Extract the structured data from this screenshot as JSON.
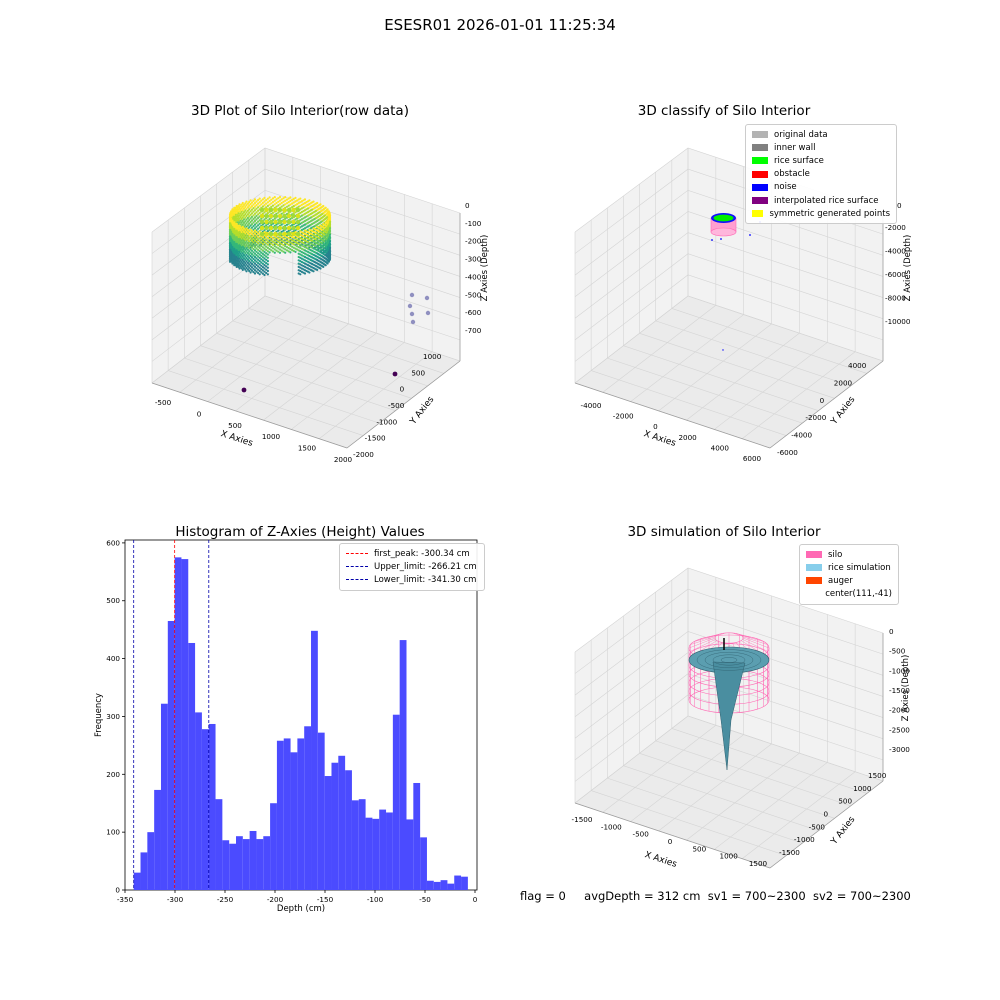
{
  "suptitle": "ESESR01 2026-01-01 11:25:34",
  "status": {
    "flag": "flag = 0",
    "avg_depth": "avgDepth = 312 cm",
    "sv1": "sv1 = 700~2300",
    "sv2": "sv2 = 700~2300"
  },
  "colors": {
    "viridis_low": "#440154",
    "viridis_mid": "#21908d",
    "viridis_high": "#fde725",
    "hist_bar": "#4b4bff",
    "grey_pane": "#f2f2f2"
  },
  "chart_data": [
    {
      "type": "scatter",
      "projection": "3d",
      "title": "3D Plot of Silo Interior(row data)",
      "xlabel": "X Axies",
      "ylabel": "Y Axies",
      "zlabel": "Z Axies (Depth)",
      "x_ticks": [
        "-500",
        "0",
        "500",
        "1000",
        "1500",
        "2000"
      ],
      "y_ticks": [
        "-2000",
        "-1500",
        "-1000",
        "-500",
        "0",
        "500",
        "1000"
      ],
      "z_ticks": [
        "0",
        "-100",
        "-200",
        "-300",
        "-400",
        "-500",
        "-600",
        "-700"
      ],
      "xlim": [
        -600,
        2000
      ],
      "ylim": [
        -2100,
        1200
      ],
      "zlim": [
        -760,
        20
      ],
      "colormap": "viridis",
      "grid": true
    },
    {
      "type": "scatter",
      "projection": "3d",
      "title": "3D classify of Silo Interior",
      "xlabel": "X Axies",
      "ylabel": "Y Axies",
      "zlabel": "Z Axies (Depth)",
      "x_ticks": [
        "-4000",
        "-2000",
        "0",
        "2000",
        "4000",
        "6000"
      ],
      "y_ticks": [
        "-6000",
        "-4000",
        "-2000",
        "0",
        "2000",
        "4000"
      ],
      "z_ticks": [
        "-2000",
        "-4000",
        "-6000",
        "-8000",
        "-10000"
      ],
      "z_tick_partial": "0",
      "xlim": [
        -5000,
        6500
      ],
      "ylim": [
        -6500,
        4500
      ],
      "zlim": [
        -11000,
        0
      ],
      "grid": true,
      "legend": {
        "position": "top-right",
        "entries": [
          {
            "label": "original data",
            "color": "#b3b3b3"
          },
          {
            "label": "inner wall",
            "color": "#808080"
          },
          {
            "label": "rice surface",
            "color": "#00ff00"
          },
          {
            "label": "obstacle",
            "color": "#ff0000"
          },
          {
            "label": "noise",
            "color": "#0000ff"
          },
          {
            "label": "interpolated rice surface",
            "color": "#800080"
          },
          {
            "label": "symmetric generated points",
            "color": "#ffff00"
          }
        ]
      }
    },
    {
      "type": "bar",
      "title": "Histogram of Z-Axies (Height) Values",
      "xlabel": "Depth (cm)",
      "ylabel": "Frequency",
      "xlim": [
        -350,
        2
      ],
      "ylim": [
        0,
        605
      ],
      "x_ticks": [
        -350,
        -300,
        -250,
        -200,
        -150,
        -100,
        -50,
        0
      ],
      "y_ticks": [
        0,
        100,
        200,
        300,
        400,
        500,
        600
      ],
      "bin_width": 6.82,
      "bin_start": -341.3,
      "values": [
        30,
        65,
        100,
        173,
        322,
        465,
        575,
        572,
        427,
        307,
        278,
        287,
        157,
        86,
        80,
        93,
        88,
        102,
        88,
        93,
        150,
        258,
        262,
        238,
        262,
        283,
        448,
        272,
        197,
        220,
        232,
        207,
        155,
        157,
        125,
        123,
        139,
        134,
        303,
        432,
        122,
        185,
        91,
        16,
        14,
        17,
        11,
        25,
        23
      ],
      "vlines": [
        {
          "label": "first_peak: -300.34 cm",
          "value": -300.34,
          "color": "#ff0000"
        },
        {
          "label": "Upper_limit: -266.21 cm",
          "value": -266.21,
          "color": "#0000aa"
        },
        {
          "label": "Lower_limit: -341.30 cm",
          "value": -341.3,
          "color": "#0000aa"
        }
      ],
      "legend": {
        "position": "top-right"
      },
      "grid": false
    },
    {
      "type": "surface",
      "projection": "3d",
      "title": "3D simulation of Silo Interior",
      "xlabel": "X Axies",
      "ylabel": "Y Axies",
      "zlabel": "Z Axies (Depth)",
      "x_ticks": [
        "-1500",
        "-1000",
        "-500",
        "0",
        "500",
        "1000",
        "1500"
      ],
      "y_ticks": [
        "-1500",
        "-1000",
        "-500",
        "0",
        "500",
        "1000",
        "1500"
      ],
      "z_ticks": [
        "0",
        "-500",
        "-1000",
        "-1500",
        "-2000",
        "-2500",
        "-3000"
      ],
      "xlim": [
        -1700,
        1700
      ],
      "ylim": [
        -1700,
        1700
      ],
      "zlim": [
        -3200,
        100
      ],
      "grid": true,
      "legend": {
        "position": "top-right",
        "entries": [
          {
            "label": "silo",
            "color": "#ff69b4"
          },
          {
            "label": "rice simulation",
            "color": "#87ceeb"
          },
          {
            "label": "auger",
            "color": "#ff4500"
          },
          {
            "label": "center(111,-41)",
            "color": ""
          }
        ]
      }
    }
  ]
}
